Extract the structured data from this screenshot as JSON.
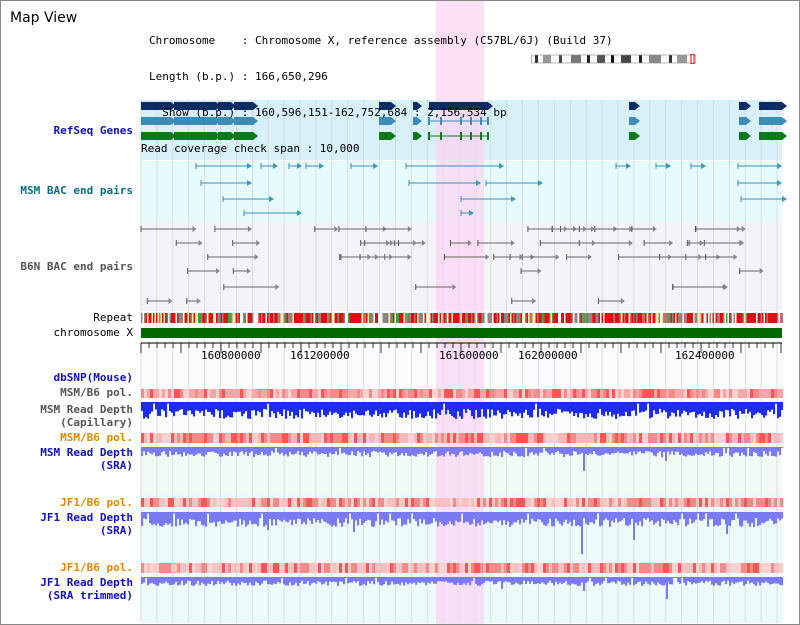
{
  "view": {
    "title": "Map View",
    "chromosome_line": "Chromosome    : Chromosome X, reference assembly (C57BL/6J) (Build 37)",
    "length_line": "Length (b.p.) : 166,650,296",
    "show_line": "  Show (b.p.) : 160,596,151-162,752,684 : 2,156,534 bp",
    "coverage_line": "Read coverage check span : 10,000"
  },
  "tracks": {
    "refseq": "RefSeq Genes",
    "msm_bac": "MSM BAC end pairs",
    "b6n_bac": "B6N BAC end pairs",
    "repeat": "Repeat",
    "chromosome": "chromosome X",
    "dbsnp": "dbSNP(Mouse)",
    "msm_b6_pol_1": "MSM/B6 pol.",
    "msm_depth_cap_1": "MSM Read Depth",
    "msm_depth_cap_2": "(Capillary)",
    "msm_b6_pol_2": "MSM/B6 pol.",
    "msm_depth_sra_1": "MSM Read Depth",
    "msm_depth_sra_2": "(SRA)",
    "jf1_b6_pol_1": "JF1/B6 pol.",
    "jf1_depth_sra_1": "JF1 Read Depth",
    "jf1_depth_sra_2": "(SRA)",
    "jf1_b6_pol_2": "JF1/B6 pol.",
    "jf1_depth_trim_1": "JF1 Read Depth",
    "jf1_depth_trim_2": "(SRA trimmed)"
  },
  "ruler": {
    "ticks": [
      "160800000",
      "161200000",
      "161600000",
      "162000000",
      "162400000"
    ]
  },
  "colors": {
    "refseq_dark": "#0b2d63",
    "refseq_mid": "#3d8cb8",
    "refseq_green": "#0a7a1a",
    "highlight": "#f9d5f3",
    "msm_track_bg": "#e6fbfb",
    "chromosome_bar": "#006600",
    "depth_capillary": "#1e2cf0",
    "depth_sra": "#7a7af2",
    "pol": "#f2a0a0"
  }
}
